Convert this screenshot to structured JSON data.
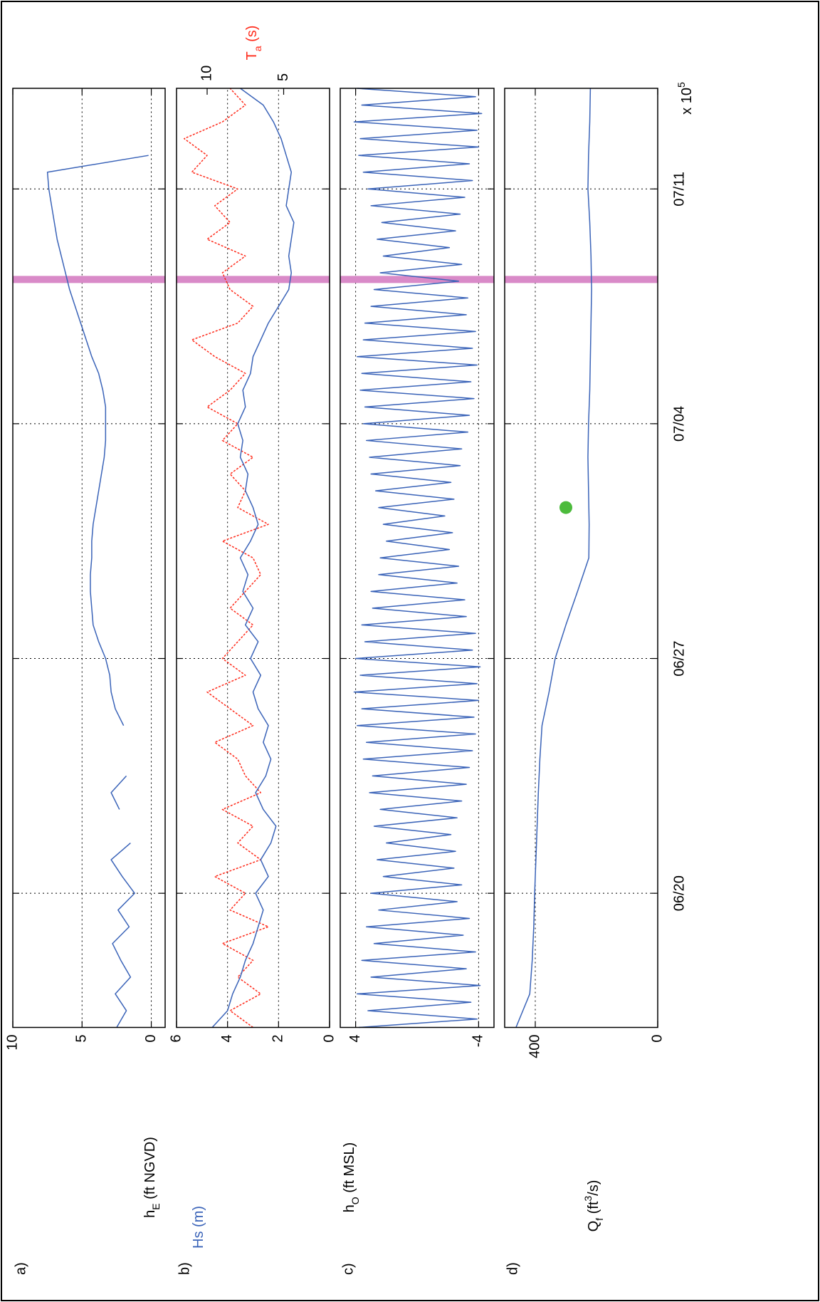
{
  "chart_data": [
    {
      "type": "line",
      "panel_label": "a)",
      "ylabel": [
        {
          "text": "h"
        },
        {
          "text": "E",
          "sub": true
        },
        {
          "text": " (ft NGVD)"
        }
      ],
      "xlim": [
        167,
        195
      ],
      "ylim": [
        -1,
        10
      ],
      "yticks": [
        0,
        5,
        10
      ],
      "grid": true,
      "highlight_x": 189.3,
      "highlight_color": "#d98ac8",
      "series": [
        {
          "color": "#3a63b8",
          "x": [
            167,
            167.5,
            168,
            168.5,
            169,
            169.5,
            170,
            170.5,
            171,
            171.5,
            172,
            172.5,
            173,
            173.5,
            174,
            174.5,
            175,
            175.5,
            176,
            176.5,
            177,
            177.5,
            178,
            178.5,
            179,
            179.5,
            180,
            180.5,
            181,
            181.5,
            182,
            182.5,
            183,
            183.5,
            184,
            184.5,
            185,
            185.5,
            186,
            186.5,
            187,
            187.5,
            188,
            188.5,
            189,
            189.5,
            190,
            190.5,
            191,
            191.5,
            192,
            192.5,
            193
          ],
          "values": [
            2.5,
            1.8,
            2.6,
            1.5,
            2.2,
            2.8,
            1.6,
            2.4,
            1.2,
            2.1,
            2.9,
            1.5,
            null,
            2.3,
            2.9,
            1.8,
            null,
            null,
            2.0,
            2.6,
            2.9,
            3.0,
            3.3,
            3.8,
            4.2,
            4.3,
            4.4,
            4.4,
            4.3,
            4.3,
            4.2,
            4.0,
            3.8,
            3.6,
            3.4,
            3.3,
            3.3,
            3.3,
            3.5,
            3.8,
            4.3,
            4.7,
            5.1,
            5.5,
            5.9,
            6.2,
            6.5,
            6.8,
            7.0,
            7.2,
            7.4,
            7.5,
            0.2
          ]
        }
      ]
    },
    {
      "type": "line",
      "panel_label": "b)",
      "ylabel": [
        {
          "text": "Hs (m)"
        }
      ],
      "ylabel_color": "#3a63b8",
      "y2label": [
        {
          "text": "T"
        },
        {
          "text": "a",
          "sub": true
        },
        {
          "text": " (s)"
        }
      ],
      "y2label_color": "#ff2a1a",
      "xlim": [
        167,
        195
      ],
      "ylim": [
        0,
        6
      ],
      "yticks": [
        0,
        2,
        4,
        6
      ],
      "y2lim": [
        2,
        12
      ],
      "y2ticks": [
        5,
        10
      ],
      "grid": true,
      "highlight_x": 189.3,
      "highlight_color": "#d98ac8",
      "series": [
        {
          "color": "#ff2a1a",
          "axis": "y2",
          "linestyle": ":",
          "x": [
            167,
            167.5,
            168,
            168.5,
            169,
            169.5,
            170,
            170.5,
            171,
            171.5,
            172,
            172.5,
            173,
            173.5,
            174,
            174.5,
            175,
            175.5,
            176,
            176.5,
            177,
            177.5,
            178,
            178.5,
            179,
            179.5,
            180,
            180.5,
            181,
            181.5,
            182,
            182.5,
            183,
            183.5,
            184,
            184.5,
            185,
            185.5,
            186,
            186.5,
            187,
            187.5,
            188,
            188.5,
            189,
            189.5,
            190,
            190.5,
            191,
            191.5,
            192,
            192.5,
            193,
            193.5,
            194,
            194.5,
            195
          ],
          "values": [
            7,
            8.5,
            6.5,
            8,
            7,
            9,
            6,
            8.5,
            7.5,
            9.5,
            6.5,
            8,
            7,
            9,
            6.5,
            7.5,
            8,
            9.5,
            7,
            8.5,
            10,
            7.5,
            9,
            8,
            7,
            8.5,
            7.5,
            6.5,
            7,
            9,
            6,
            8,
            7.5,
            8.5,
            7,
            9,
            8,
            10,
            8.5,
            7.5,
            9.5,
            11,
            8,
            7,
            8.5,
            9,
            7.5,
            10,
            8.5,
            9.5,
            8,
            11,
            10,
            11.5,
            9,
            7.5,
            8.5
          ]
        },
        {
          "color": "#3a63b8",
          "x": [
            167,
            167.5,
            168,
            168.5,
            169,
            169.5,
            170,
            170.5,
            171,
            171.5,
            172,
            172.5,
            173,
            173.5,
            174,
            174.5,
            175,
            175.5,
            176,
            176.5,
            177,
            177.5,
            178,
            178.5,
            179,
            179.5,
            180,
            180.5,
            181,
            181.5,
            182,
            182.5,
            183,
            183.5,
            184,
            184.5,
            185,
            185.5,
            186,
            186.5,
            187,
            187.5,
            188,
            188.5,
            189,
            189.5,
            190,
            190.5,
            191,
            191.5,
            192,
            192.5,
            193,
            193.5,
            194,
            194.5,
            195
          ],
          "values": [
            4.6,
            4.0,
            3.8,
            3.5,
            3.3,
            3.0,
            2.8,
            2.6,
            2.9,
            2.4,
            2.7,
            2.3,
            2.1,
            2.6,
            2.9,
            2.5,
            2.3,
            2.6,
            2.4,
            2.8,
            3.0,
            2.7,
            3.1,
            2.8,
            3.3,
            3.0,
            3.4,
            3.2,
            3.5,
            3.1,
            2.8,
            3.0,
            3.3,
            3.2,
            3.5,
            3.4,
            3.6,
            3.3,
            3.4,
            3.1,
            3.0,
            2.7,
            2.4,
            2.0,
            1.6,
            1.5,
            1.6,
            1.5,
            1.4,
            1.7,
            1.6,
            1.5,
            1.7,
            1.9,
            2.2,
            2.6,
            3.5
          ]
        }
      ]
    },
    {
      "type": "line",
      "panel_label": "c)",
      "ylabel": [
        {
          "text": "h"
        },
        {
          "text": "O",
          "sub": true
        },
        {
          "text": " (ft MSL)"
        }
      ],
      "xlim": [
        167,
        195
      ],
      "ylim": [
        -5,
        5
      ],
      "yticks": [
        -4,
        4
      ],
      "grid": true,
      "highlight_x": 189.3,
      "highlight_color": "#d98ac8",
      "series": [
        {
          "color": "#3a63b8",
          "x": [
            167,
            167.25,
            167.5,
            167.75,
            168,
            168.25,
            168.5,
            168.75,
            169,
            169.25,
            169.5,
            169.75,
            170,
            170.25,
            170.5,
            170.75,
            171,
            171.25,
            171.5,
            171.75,
            172,
            172.25,
            172.5,
            172.75,
            173,
            173.25,
            173.5,
            173.75,
            174,
            174.25,
            174.5,
            174.75,
            175,
            175.25,
            175.5,
            175.75,
            176,
            176.25,
            176.5,
            176.75,
            177,
            177.25,
            177.5,
            177.75,
            178,
            178.25,
            178.5,
            178.75,
            179,
            179.25,
            179.5,
            179.75,
            180,
            180.25,
            180.5,
            180.75,
            181,
            181.25,
            181.5,
            181.75,
            182,
            182.25,
            182.5,
            182.75,
            183,
            183.25,
            183.5,
            183.75,
            184,
            184.25,
            184.5,
            184.75,
            185,
            185.25,
            185.5,
            185.75,
            186,
            186.25,
            186.5,
            186.75,
            187,
            187.25,
            187.5,
            187.75,
            188,
            188.25,
            188.5,
            188.75,
            189,
            189.25,
            189.5,
            189.75,
            190,
            190.25,
            190.5,
            190.75,
            191,
            191.25,
            191.5,
            191.75,
            192,
            192.25,
            192.5,
            192.75,
            193,
            193.25,
            193.5,
            193.75,
            194,
            194.25,
            194.5,
            194.75,
            195
          ],
          "values": [
            3.8,
            -3.9,
            3.2,
            -3.5,
            3.9,
            -4.1,
            3.0,
            -3.2,
            3.6,
            -3.8,
            2.8,
            -3.0,
            3.3,
            -3.4,
            2.5,
            -2.6,
            3.0,
            -2.9,
            2.2,
            -2.4,
            2.6,
            -2.5,
            2.0,
            -2.2,
            2.8,
            -2.6,
            2.4,
            -2.9,
            3.1,
            -3.2,
            2.9,
            -3.4,
            3.5,
            -3.6,
            3.3,
            -3.8,
            3.9,
            -3.7,
            3.6,
            -4.0,
            4.1,
            -3.9,
            3.7,
            -4.1,
            4.0,
            -3.6,
            3.4,
            -3.8,
            3.6,
            -3.2,
            2.9,
            -3.1,
            3.0,
            -2.6,
            2.5,
            -2.7,
            2.4,
            -2.1,
            2.0,
            -2.3,
            2.2,
            -1.8,
            2.5,
            -2.4,
            2.7,
            -2.2,
            3.0,
            -2.8,
            3.1,
            -2.9,
            3.3,
            -3.3,
            3.5,
            -3.4,
            3.4,
            -3.7,
            3.7,
            -3.5,
            3.6,
            -3.9,
            3.9,
            -3.6,
            3.5,
            -3.8,
            3.4,
            -3.2,
            3.0,
            -3.3,
            2.8,
            -2.7,
            2.4,
            -2.9,
            2.2,
            -2.1,
            2.6,
            -2.5,
            2.3,
            -2.8,
            3.0,
            -3.1,
            3.2,
            -3.6,
            3.5,
            -3.4,
            3.8,
            -4.0,
            3.7,
            -3.9,
            4.1,
            -4.2,
            3.6,
            -3.8,
            3.9
          ]
        }
      ]
    },
    {
      "type": "line",
      "panel_label": "d)",
      "ylabel": [
        {
          "text": "Q"
        },
        {
          "text": "f",
          "sub": true
        },
        {
          "text": " (ft"
        },
        {
          "text": "3",
          "sup": true
        },
        {
          "text": "/s)"
        }
      ],
      "xlim": [
        167,
        195
      ],
      "ylim": [
        0,
        500
      ],
      "yticks": [
        0,
        400
      ],
      "grid": true,
      "xticks": [
        {
          "value": 171,
          "label": "06/20"
        },
        {
          "value": 178,
          "label": "06/27"
        },
        {
          "value": 185,
          "label": "07/04"
        },
        {
          "value": 192,
          "label": "07/11"
        }
      ],
      "x_multiplier": "x 10",
      "x_exponent": "5",
      "highlight_x": 189.3,
      "highlight_color": "#d98ac8",
      "series": [
        {
          "color": "#3a63b8",
          "x": [
            167,
            168,
            169,
            170,
            171,
            172,
            173,
            174,
            175,
            176,
            177,
            178,
            179,
            180,
            181,
            182,
            183,
            184,
            185,
            186,
            187,
            188,
            189,
            190,
            191,
            192,
            193,
            194,
            195
          ],
          "values": [
            463,
            418,
            410,
            405,
            402,
            398,
            394,
            390,
            385,
            378,
            355,
            335,
            300,
            262,
            225,
            224,
            226,
            228,
            226,
            222,
            220,
            218,
            216,
            218,
            222,
            228,
            226,
            222,
            220
          ]
        },
        {
          "color": "#4cbb3c",
          "marker": "o",
          "x": [
            182.5
          ],
          "values": [
            300
          ]
        }
      ]
    }
  ]
}
